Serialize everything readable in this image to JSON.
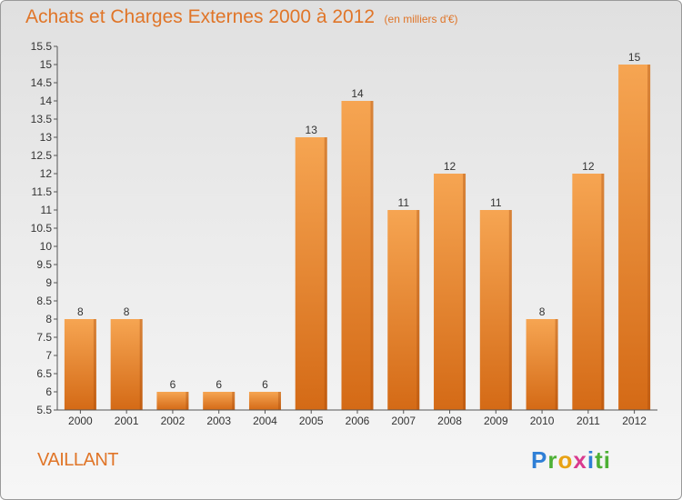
{
  "header": {
    "title": "Achats et Charges Externes 2000 à 2012",
    "unit": "(en milliers d'€)"
  },
  "footer": {
    "commune": "VAILLANT",
    "logo_letters": [
      "P",
      "r",
      "o",
      "x",
      "i",
      "t",
      "i"
    ]
  },
  "colors": {
    "accent": "#e07528",
    "bar_light": "#f6a552",
    "bar_dark": "#d46a16"
  },
  "chart_data": {
    "type": "bar",
    "title": "Achats et Charges Externes 2000 à 2012",
    "subtitle": "(en milliers d'€)",
    "categories": [
      "2000",
      "2001",
      "2002",
      "2003",
      "2004",
      "2005",
      "2006",
      "2007",
      "2008",
      "2009",
      "2010",
      "2011",
      "2012"
    ],
    "values": [
      8,
      8,
      6,
      6,
      6,
      13,
      14,
      11,
      12,
      11,
      8,
      12,
      15
    ],
    "ylim": [
      5.5,
      15.5
    ],
    "yticks": [
      "5.5",
      "6",
      "6.5",
      "7",
      "7.5",
      "8",
      "8.5",
      "9",
      "9.5",
      "10",
      "10.5",
      "11",
      "11.5",
      "12",
      "12.5",
      "13",
      "13.5",
      "14",
      "14.5",
      "15",
      "15.5"
    ],
    "grid": false,
    "legend": "none"
  }
}
